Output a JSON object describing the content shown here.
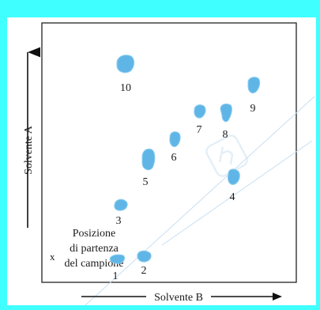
{
  "axis_vertical_label": "Solvente A",
  "axis_horizontal_label": "Solvente B",
  "origin_marker": "x",
  "origin_caption": [
    "Posizione",
    "di partenza",
    "del campione"
  ],
  "spot_color": "#5fb6e6",
  "spots": [
    {
      "label": "1"
    },
    {
      "label": "2"
    },
    {
      "label": "3"
    },
    {
      "label": "4"
    },
    {
      "label": "5"
    },
    {
      "label": "6"
    },
    {
      "label": "7"
    },
    {
      "label": "8"
    },
    {
      "label": "9"
    },
    {
      "label": "10"
    }
  ]
}
